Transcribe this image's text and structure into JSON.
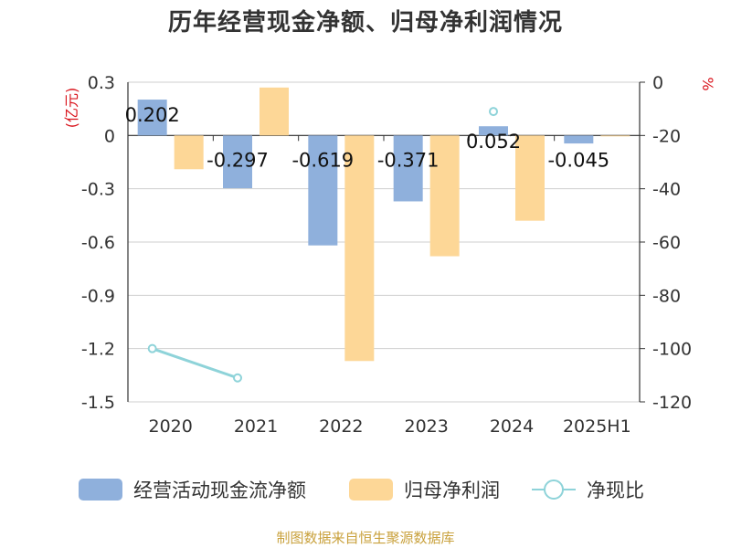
{
  "chart_data": {
    "type": "bar",
    "title": "历年经营现金净额、归母净利润情况",
    "source": "制图数据来自恒生聚源数据库",
    "categories": [
      "2020",
      "2021",
      "2022",
      "2023",
      "2024",
      "2025H1"
    ],
    "y_left": {
      "unit": "(亿元)",
      "range": [
        -1.5,
        0.3
      ],
      "ticks": [
        "0.3",
        "0",
        "-0.3",
        "-0.6",
        "-0.9",
        "-1.2",
        "-1.5"
      ]
    },
    "y_right": {
      "unit": "%",
      "range": [
        -120,
        0
      ],
      "ticks": [
        "0",
        "-20",
        "-40",
        "-60",
        "-80",
        "-100",
        "-120"
      ]
    },
    "grid": true,
    "legend_position": "bottom",
    "series": [
      {
        "name": "经营活动现金流净额",
        "type": "bar",
        "axis": "left",
        "color": "#8fb0dc",
        "values": [
          0.202,
          -0.297,
          -0.619,
          -0.371,
          0.052,
          -0.045
        ],
        "labels": [
          "0.202",
          "-0.297",
          "-0.619",
          "-0.371",
          "0.052",
          "-0.045"
        ]
      },
      {
        "name": "归母净利润",
        "type": "bar",
        "axis": "left",
        "color": "#fdd797",
        "values": [
          -0.19,
          0.27,
          -1.27,
          -0.68,
          -0.48,
          -0.003
        ]
      },
      {
        "name": "净现比",
        "type": "line",
        "axis": "right",
        "color": "#8ed3d9",
        "values": [
          -100,
          -111,
          null,
          null,
          -11,
          null
        ]
      }
    ]
  }
}
